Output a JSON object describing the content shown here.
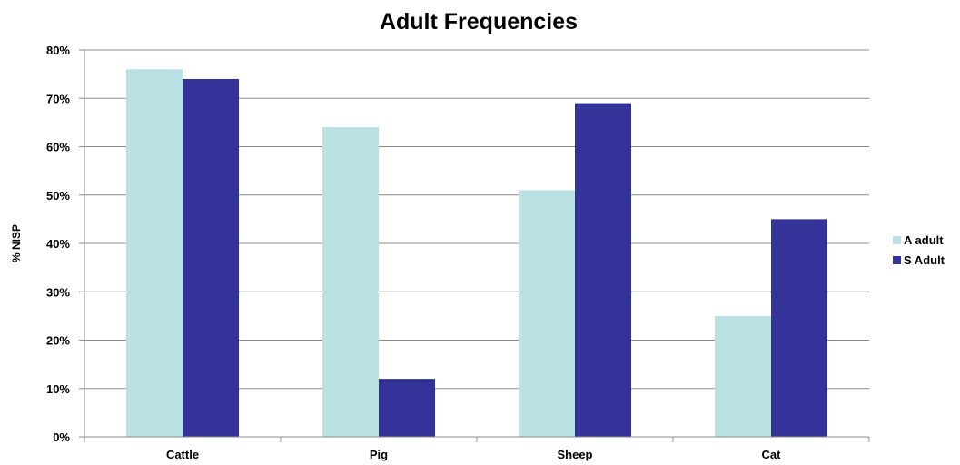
{
  "chart_data": {
    "type": "bar",
    "title": "Adult Frequencies",
    "xlabel": "",
    "ylabel": "% NISP",
    "ylim": [
      0,
      80
    ],
    "yticks": [
      "0%",
      "10%",
      "20%",
      "30%",
      "40%",
      "50%",
      "60%",
      "70%",
      "80%"
    ],
    "categories": [
      "Cattle",
      "Pig",
      "Sheep",
      "Cat"
    ],
    "series": [
      {
        "name": "A adult",
        "color": "#b9e1e4",
        "values": [
          76,
          64,
          51,
          25
        ]
      },
      {
        "name": "S Adult",
        "color": "#333399",
        "values": [
          74,
          12,
          69,
          45
        ]
      }
    ],
    "grid": true,
    "legend": "right"
  }
}
